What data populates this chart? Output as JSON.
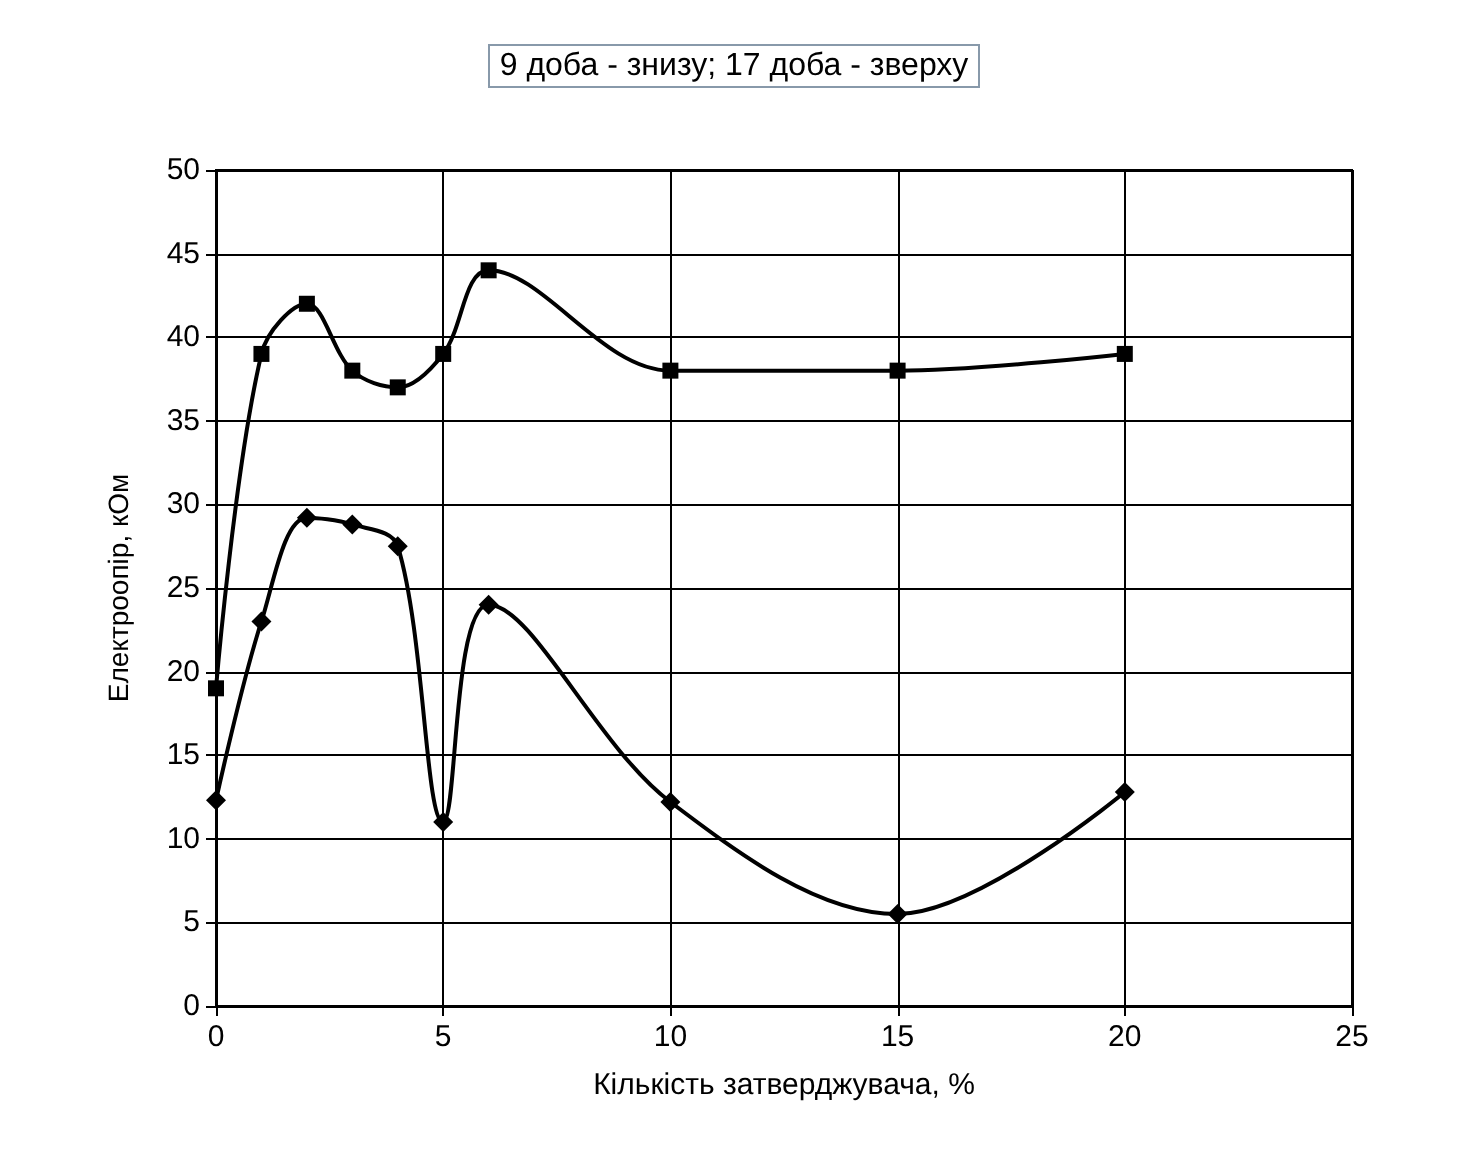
{
  "chart_data": {
    "type": "line",
    "title": "9 доба - знизу; 17 доба - зверху",
    "xlabel": "Кількість затверджувача, %",
    "ylabel": "Електроопір, кОм",
    "x": [
      0,
      1,
      2,
      3,
      4,
      5,
      6,
      10,
      15,
      20
    ],
    "series": [
      {
        "color": "#000000",
        "marker": "square",
        "values": [
          19,
          39,
          42,
          38,
          37,
          39,
          44,
          38,
          38,
          39
        ]
      },
      {
        "color": "#000000",
        "marker": "diamond",
        "values": [
          12.3,
          23,
          29.2,
          28.8,
          27.5,
          11,
          24,
          12.2,
          5.5,
          12.8
        ]
      }
    ],
    "xlim": [
      0,
      25
    ],
    "xticks": [
      0,
      5,
      10,
      15,
      20,
      25
    ],
    "ylim": [
      0,
      50
    ],
    "yticks": [
      0,
      5,
      10,
      15,
      20,
      25,
      30,
      35,
      40,
      45,
      50
    ],
    "grid": true,
    "line_style": "solid"
  }
}
